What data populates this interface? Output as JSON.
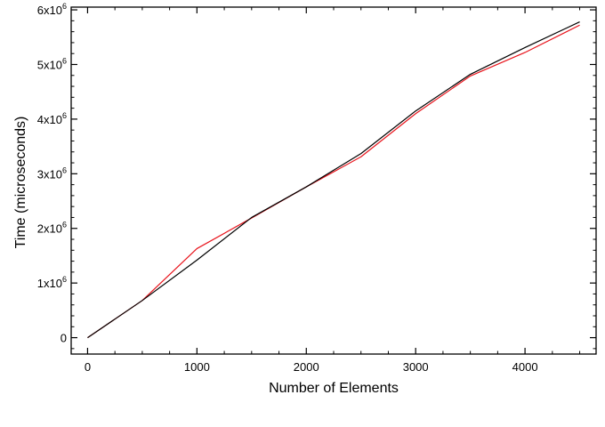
{
  "chart_data": {
    "type": "line",
    "title": "",
    "xlabel": "Number of Elements",
    "ylabel": "Time (microseconds)",
    "xlim": [
      -150,
      4650
    ],
    "ylim": [
      -300000,
      6050000
    ],
    "xticks": [
      0,
      1000,
      2000,
      3000,
      4000
    ],
    "xtick_labels": [
      "0",
      "1000",
      "2000",
      "3000",
      "4000"
    ],
    "yticks": [
      0,
      1000000,
      2000000,
      3000000,
      4000000,
      5000000,
      6000000
    ],
    "ytick_labels": [
      {
        "base": "0",
        "exp": ""
      },
      {
        "base": "1x10",
        "exp": "6"
      },
      {
        "base": "2x10",
        "exp": "6"
      },
      {
        "base": "3x10",
        "exp": "6"
      },
      {
        "base": "4x10",
        "exp": "6"
      },
      {
        "base": "5x10",
        "exp": "6"
      },
      {
        "base": "6x10",
        "exp": "6"
      }
    ],
    "x_minor_step": 250,
    "y_minor_step": 200000,
    "grid": false,
    "legend": "none",
    "series": [
      {
        "color": "#000000",
        "x": [
          0,
          500,
          1000,
          1500,
          2000,
          2500,
          3000,
          3500,
          4000,
          4500
        ],
        "y": [
          0,
          680000,
          1420000,
          2200000,
          2760000,
          3370000,
          4150000,
          4820000,
          5310000,
          5780000
        ]
      },
      {
        "color": "#e8141c",
        "x": [
          0,
          500,
          1000,
          1500,
          2000,
          2500,
          3000,
          3500,
          4000,
          4500
        ],
        "y": [
          0,
          680000,
          1630000,
          2190000,
          2760000,
          3310000,
          4100000,
          4790000,
          5220000,
          5720000
        ]
      }
    ]
  }
}
